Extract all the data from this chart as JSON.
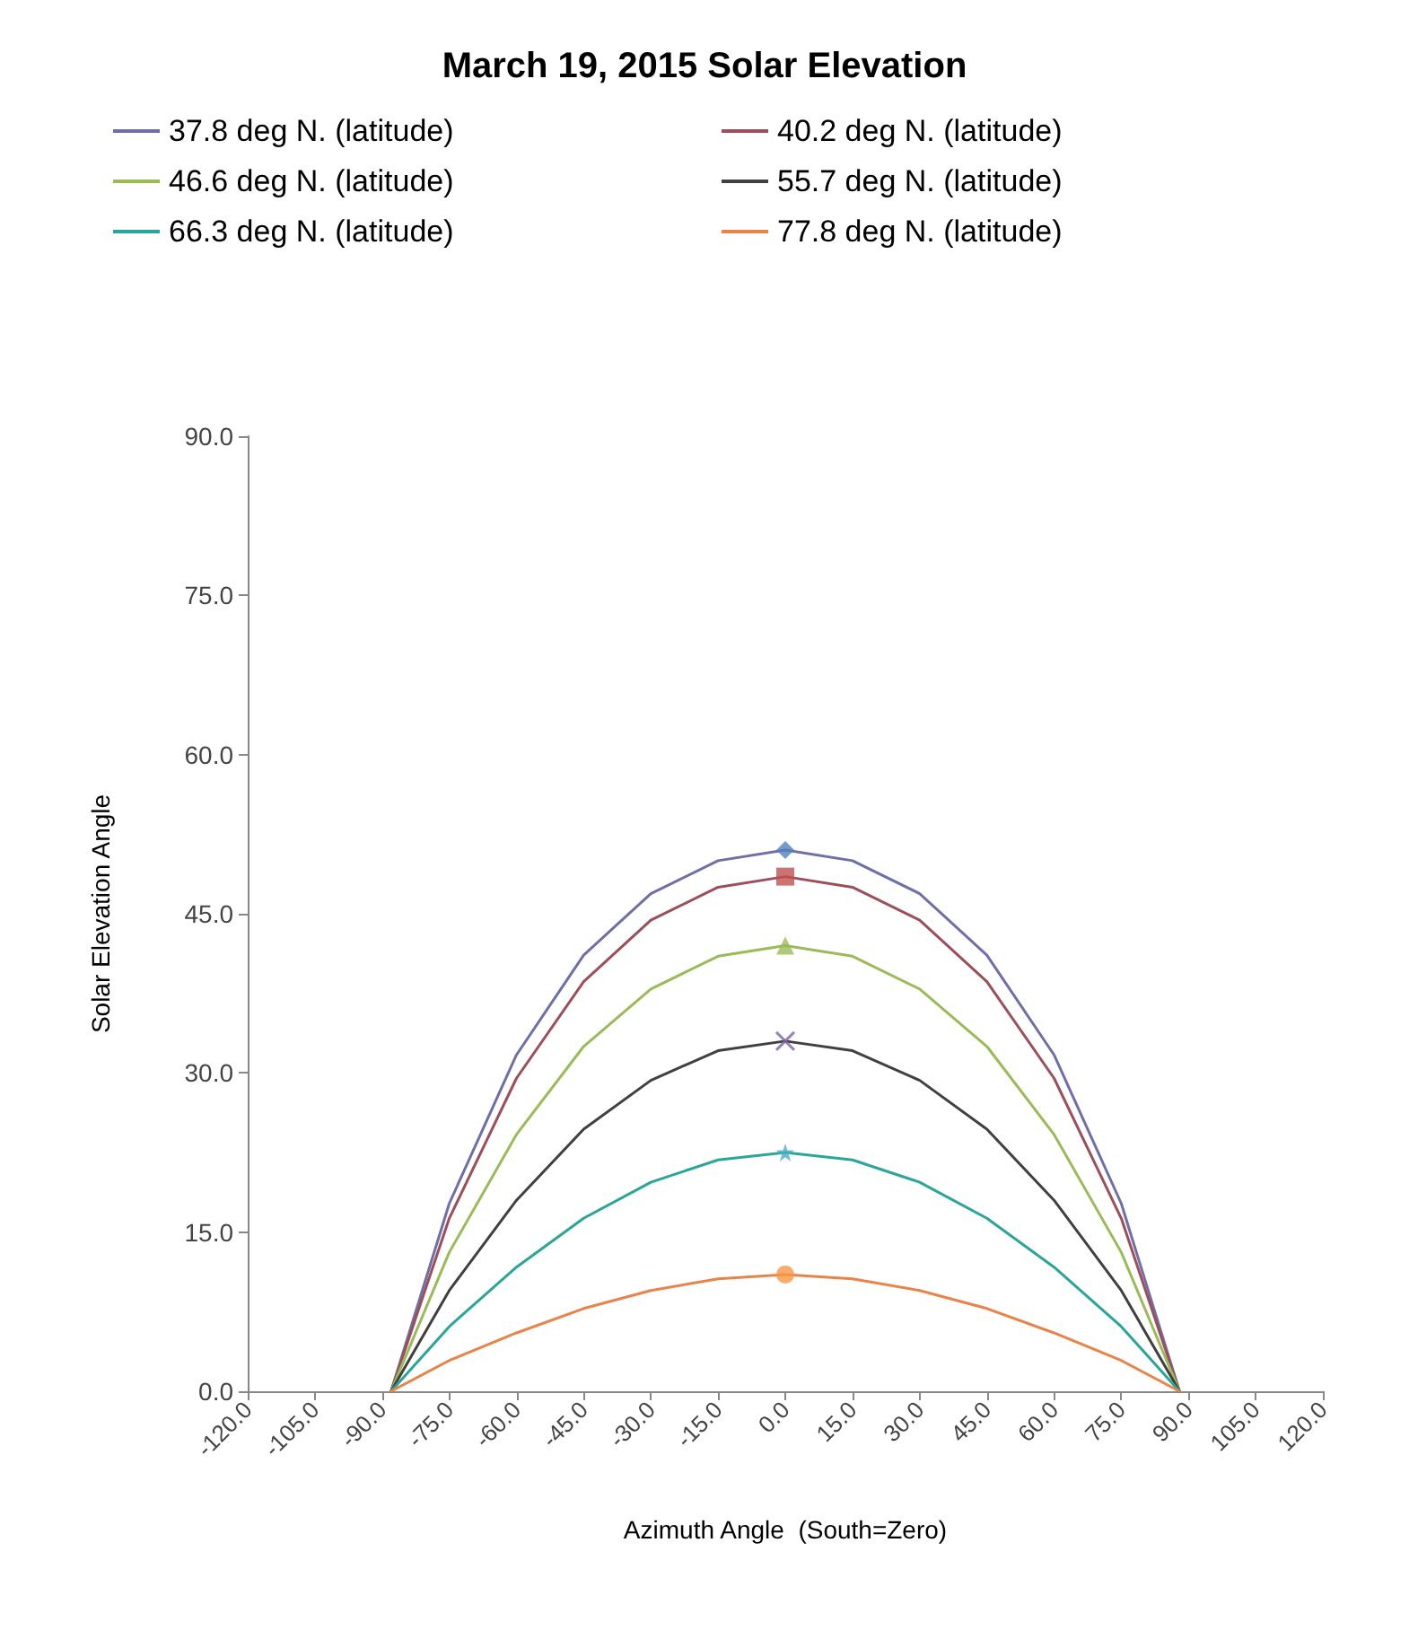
{
  "chart_data": {
    "type": "line",
    "title": "March 19, 2015 Solar Elevation",
    "xlabel": "Azimuth Angle  (South=Zero)",
    "ylabel": "Solar Elevation Angle",
    "x": [
      -88,
      -75,
      -60,
      -45,
      -30,
      -15,
      0,
      15,
      30,
      45,
      60,
      75,
      88
    ],
    "series": [
      {
        "name": "37.8 deg N. (latitude)",
        "color": "#6e6fa8",
        "values": [
          0,
          17.7,
          31.7,
          41.1,
          46.9,
          50.0,
          51,
          50.0,
          46.9,
          41.1,
          31.7,
          17.7,
          0
        ]
      },
      {
        "name": "40.2 deg N. (latitude)",
        "color": "#9c4e5a",
        "values": [
          0,
          16.3,
          29.5,
          38.6,
          44.4,
          47.5,
          48.5,
          47.5,
          44.4,
          38.6,
          29.5,
          16.3,
          0
        ]
      },
      {
        "name": "46.6 deg N. (latitude)",
        "color": "#9bbb59",
        "values": [
          0,
          13.1,
          24.2,
          32.5,
          37.9,
          41.0,
          42,
          41.0,
          37.9,
          32.5,
          24.2,
          13.1,
          0
        ]
      },
      {
        "name": "55.7 deg N. (latitude)",
        "color": "#404040",
        "values": [
          0,
          9.5,
          18.0,
          24.7,
          29.3,
          32.1,
          33,
          32.1,
          29.3,
          24.7,
          18.0,
          9.5,
          0
        ]
      },
      {
        "name": "66.3 deg N. (latitude)",
        "color": "#2aa59a",
        "values": [
          0,
          6.1,
          11.7,
          16.3,
          19.7,
          21.8,
          22.5,
          21.8,
          19.7,
          16.3,
          11.7,
          6.1,
          0
        ]
      },
      {
        "name": "77.8 deg N. (latitude)",
        "color": "#e8834a",
        "values": [
          0,
          2.9,
          5.5,
          7.8,
          9.5,
          10.6,
          11,
          10.6,
          9.5,
          7.8,
          5.5,
          2.9,
          0
        ]
      },
      {
        "type": "scatter",
        "marker": "diamond",
        "color": "#4f81bd",
        "values": [
          null,
          null,
          null,
          null,
          null,
          null,
          51,
          null,
          null,
          null,
          null,
          null,
          null
        ]
      },
      {
        "type": "scatter",
        "marker": "square",
        "color": "#c0504d",
        "values": [
          null,
          null,
          null,
          null,
          null,
          null,
          48.5,
          null,
          null,
          null,
          null,
          null,
          null
        ]
      },
      {
        "type": "scatter",
        "marker": "triangle",
        "color": "#9bbb59",
        "values": [
          null,
          null,
          null,
          null,
          null,
          null,
          42,
          null,
          null,
          null,
          null,
          null,
          null
        ]
      },
      {
        "type": "scatter",
        "marker": "cross",
        "color": "#8064a2",
        "values": [
          null,
          null,
          null,
          null,
          null,
          null,
          33,
          null,
          null,
          null,
          null,
          null,
          null
        ]
      },
      {
        "type": "scatter",
        "marker": "star",
        "color": "#4bacc6",
        "values": [
          null,
          null,
          null,
          null,
          null,
          null,
          22.5,
          null,
          null,
          null,
          null,
          null,
          null
        ]
      },
      {
        "type": "scatter",
        "marker": "circle",
        "color": "#f79646",
        "values": [
          null,
          null,
          null,
          null,
          null,
          null,
          11,
          null,
          null,
          null,
          null,
          null,
          null
        ]
      }
    ],
    "marker": "none",
    "line_style": "solid",
    "grid": false,
    "legend": "top",
    "xlim": [
      -120,
      120
    ],
    "xticks": [
      {
        "value": -120,
        "label": "-120.0"
      },
      {
        "value": -105,
        "label": "-105.0"
      },
      {
        "value": -90,
        "label": "-90.0"
      },
      {
        "value": -75,
        "label": "-75.0"
      },
      {
        "value": -60,
        "label": "-60.0"
      },
      {
        "value": -45,
        "label": "-45.0"
      },
      {
        "value": -30,
        "label": "-30.0"
      },
      {
        "value": -15,
        "label": "-15.0"
      },
      {
        "value": 0,
        "label": "0.0"
      },
      {
        "value": 15,
        "label": "15.0"
      },
      {
        "value": 30,
        "label": "30.0"
      },
      {
        "value": 45,
        "label": "45.0"
      },
      {
        "value": 60,
        "label": "60.0"
      },
      {
        "value": 75,
        "label": "75.0"
      },
      {
        "value": 90,
        "label": "90.0"
      },
      {
        "value": 105,
        "label": "105.0"
      },
      {
        "value": 120,
        "label": "120.0"
      }
    ],
    "ylim": [
      0,
      90
    ],
    "yticks": [
      {
        "value": 0,
        "label": "0.0"
      },
      {
        "value": 15,
        "label": "15.0"
      },
      {
        "value": 30,
        "label": "30.0"
      },
      {
        "value": 45,
        "label": "45.0"
      },
      {
        "value": 60,
        "label": "60.0"
      },
      {
        "value": 75,
        "label": "75.0"
      },
      {
        "value": 90,
        "label": "90.0"
      }
    ]
  }
}
